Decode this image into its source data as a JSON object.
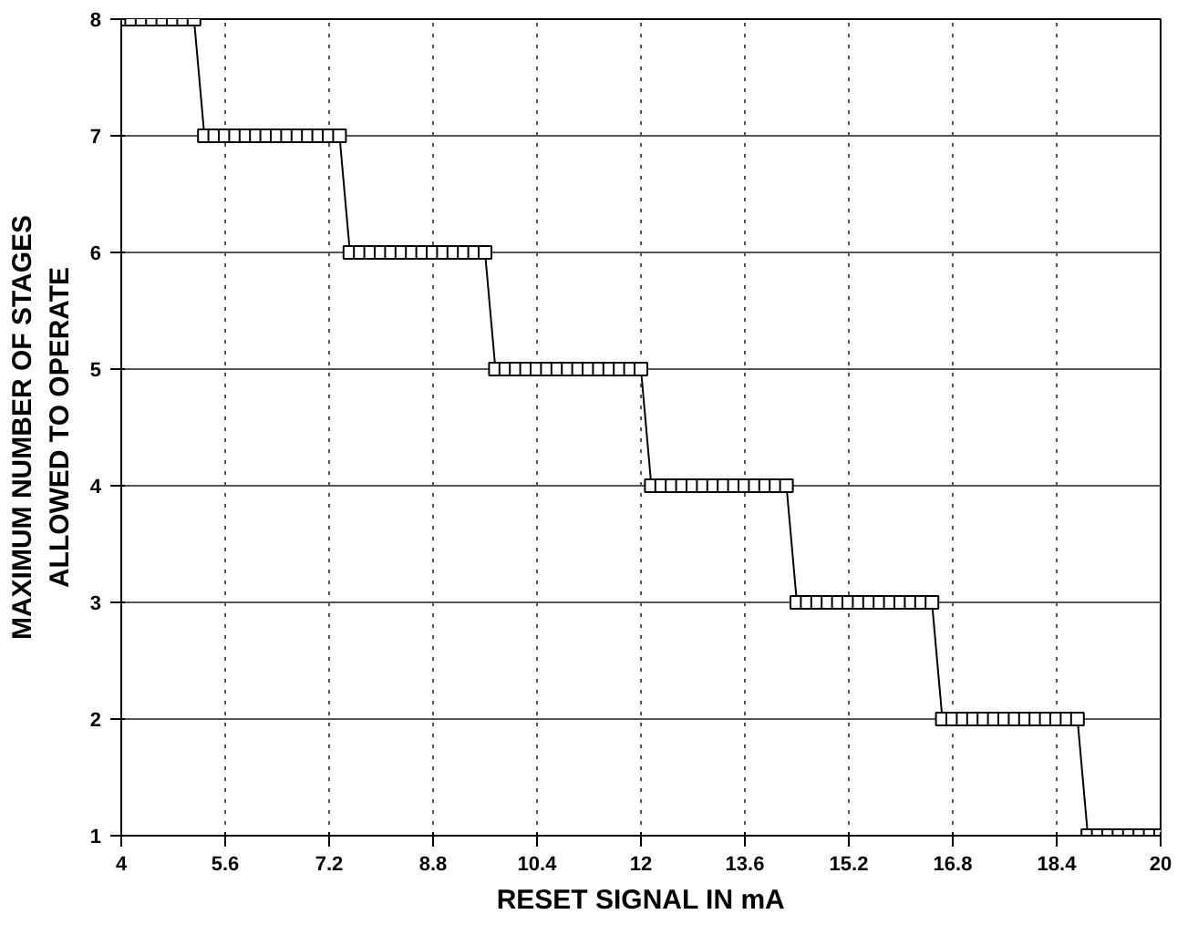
{
  "chart_data": {
    "type": "line",
    "xlabel": "RESET SIGNAL IN mA",
    "ylabel": "MAXIMUM NUMBER OF STAGES\nALLOWED TO OPERATE",
    "x": [
      4,
      4.16,
      4.32,
      4.48,
      4.64,
      4.8,
      4.96,
      5.12,
      5.28,
      5.44,
      5.6,
      5.76,
      5.92,
      6.08,
      6.24,
      6.4,
      6.56,
      6.72,
      6.88,
      7.04,
      7.2,
      7.36,
      7.52,
      7.68,
      7.84,
      8,
      8.16,
      8.32,
      8.48,
      8.64,
      8.8,
      8.96,
      9.12,
      9.28,
      9.44,
      9.6,
      9.76,
      9.92,
      10.08,
      10.24,
      10.4,
      10.56,
      10.72,
      10.88,
      11.04,
      11.2,
      11.36,
      11.52,
      11.68,
      11.84,
      12,
      12.16,
      12.32,
      12.48,
      12.64,
      12.8,
      12.96,
      13.12,
      13.28,
      13.44,
      13.6,
      13.76,
      13.92,
      14.08,
      14.24,
      14.4,
      14.56,
      14.72,
      14.88,
      15.04,
      15.2,
      15.36,
      15.52,
      15.68,
      15.84,
      16,
      16.16,
      16.32,
      16.48,
      16.64,
      16.8,
      16.96,
      17.12,
      17.28,
      17.44,
      17.6,
      17.76,
      17.92,
      18.08,
      18.24,
      18.4,
      18.56,
      18.72,
      18.88,
      19.04,
      19.2,
      19.36,
      19.52,
      19.68,
      19.84,
      20
    ],
    "series": [
      {
        "color": "#000000",
        "values": [
          8,
          8,
          8,
          8,
          8,
          8,
          8,
          8,
          7,
          7,
          7,
          7,
          7,
          7,
          7,
          7,
          7,
          7,
          7,
          7,
          7,
          7,
          6,
          6,
          6,
          6,
          6,
          6,
          6,
          6,
          6,
          6,
          6,
          6,
          6,
          6,
          5,
          5,
          5,
          5,
          5,
          5,
          5,
          5,
          5,
          5,
          5,
          5,
          5,
          5,
          5,
          4,
          4,
          4,
          4,
          4,
          4,
          4,
          4,
          4,
          4,
          4,
          4,
          4,
          4,
          3,
          3,
          3,
          3,
          3,
          3,
          3,
          3,
          3,
          3,
          3,
          3,
          3,
          3,
          2,
          2,
          2,
          2,
          2,
          2,
          2,
          2,
          2,
          2,
          2,
          2,
          2,
          2,
          1,
          1,
          1,
          1,
          1,
          1,
          1,
          1
        ]
      }
    ],
    "xlim": [
      4,
      20
    ],
    "xticks": [
      4,
      5.6,
      7.2,
      8.8,
      10.4,
      12,
      13.6,
      15.2,
      16.8,
      18.4,
      20
    ],
    "ylim": [
      1,
      8
    ],
    "yticks": [
      1,
      2,
      3,
      4,
      5,
      6,
      7,
      8
    ],
    "grid": true,
    "marker": "square",
    "line_style": "solid"
  }
}
